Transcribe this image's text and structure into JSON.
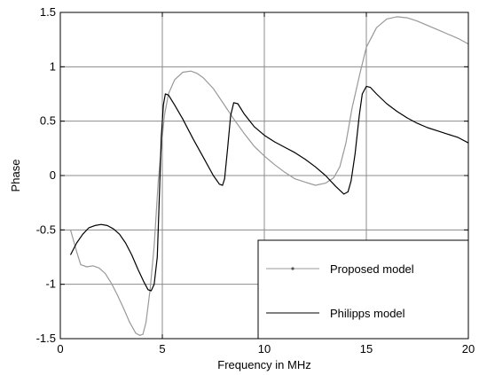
{
  "chart_data": {
    "type": "line",
    "xlabel": "Frequency in MHz",
    "ylabel": "Phase",
    "xlim": [
      0,
      20
    ],
    "ylim": [
      -1.5,
      1.5
    ],
    "grid": true,
    "legend_position": "bottom-right",
    "x_ticks": [
      "0",
      "5",
      "10",
      "15",
      "20"
    ],
    "y_ticks": [
      "-1.5",
      "-1",
      "-0.5",
      "0",
      "0.5",
      "1",
      "1.5"
    ],
    "series": [
      {
        "name": "Proposed model",
        "color": "#999999",
        "x": [
          0.5,
          0.8,
          1.0,
          1.3,
          1.6,
          1.9,
          2.2,
          2.5,
          2.8,
          3.1,
          3.4,
          3.7,
          3.9,
          4.05,
          4.2,
          4.4,
          4.6,
          4.8,
          4.95,
          5.1,
          5.3,
          5.6,
          6.0,
          6.4,
          6.7,
          7.0,
          7.5,
          8.0,
          8.5,
          9.0,
          9.5,
          10.0,
          10.5,
          11.0,
          11.5,
          12.0,
          12.5,
          13.0,
          13.4,
          13.7,
          14.0,
          14.3,
          14.7,
          15.0,
          15.5,
          16.0,
          16.5,
          17.0,
          17.5,
          18.0,
          18.5,
          19.0,
          19.5,
          20.0
        ],
        "y": [
          -0.5,
          -0.7,
          -0.82,
          -0.84,
          -0.83,
          -0.85,
          -0.9,
          -0.99,
          -1.1,
          -1.22,
          -1.35,
          -1.45,
          -1.47,
          -1.46,
          -1.35,
          -1.05,
          -0.65,
          -0.05,
          0.25,
          0.55,
          0.75,
          0.88,
          0.95,
          0.96,
          0.94,
          0.9,
          0.8,
          0.66,
          0.52,
          0.39,
          0.27,
          0.18,
          0.1,
          0.03,
          -0.03,
          -0.06,
          -0.09,
          -0.07,
          -0.02,
          0.08,
          0.3,
          0.62,
          0.95,
          1.18,
          1.36,
          1.44,
          1.46,
          1.45,
          1.42,
          1.38,
          1.34,
          1.3,
          1.26,
          1.21
        ]
      },
      {
        "name": "Philipps model",
        "color": "#000000",
        "x": [
          0.5,
          0.8,
          1.1,
          1.4,
          1.7,
          2.0,
          2.3,
          2.6,
          2.9,
          3.2,
          3.5,
          3.8,
          4.1,
          4.3,
          4.45,
          4.6,
          4.75,
          4.85,
          4.95,
          5.05,
          5.15,
          5.3,
          5.6,
          6.0,
          6.5,
          7.0,
          7.5,
          7.8,
          7.95,
          8.05,
          8.2,
          8.35,
          8.5,
          8.7,
          9.0,
          9.5,
          10.0,
          10.5,
          11.0,
          11.5,
          12.0,
          12.5,
          13.0,
          13.5,
          13.9,
          14.1,
          14.25,
          14.45,
          14.65,
          14.8,
          15.0,
          15.2,
          15.5,
          16.0,
          16.5,
          17.0,
          17.5,
          18.0,
          18.5,
          19.0,
          19.5,
          20.0
        ],
        "y": [
          -0.73,
          -0.62,
          -0.54,
          -0.48,
          -0.46,
          -0.45,
          -0.46,
          -0.49,
          -0.54,
          -0.62,
          -0.73,
          -0.86,
          -0.98,
          -1.05,
          -1.06,
          -1.0,
          -0.75,
          -0.2,
          0.35,
          0.65,
          0.75,
          0.74,
          0.65,
          0.52,
          0.34,
          0.17,
          0.0,
          -0.08,
          -0.09,
          -0.03,
          0.25,
          0.55,
          0.67,
          0.66,
          0.57,
          0.45,
          0.37,
          0.31,
          0.26,
          0.21,
          0.15,
          0.08,
          0.0,
          -0.1,
          -0.17,
          -0.15,
          -0.05,
          0.2,
          0.55,
          0.75,
          0.82,
          0.81,
          0.75,
          0.66,
          0.59,
          0.53,
          0.48,
          0.44,
          0.41,
          0.38,
          0.35,
          0.3
        ]
      }
    ]
  }
}
